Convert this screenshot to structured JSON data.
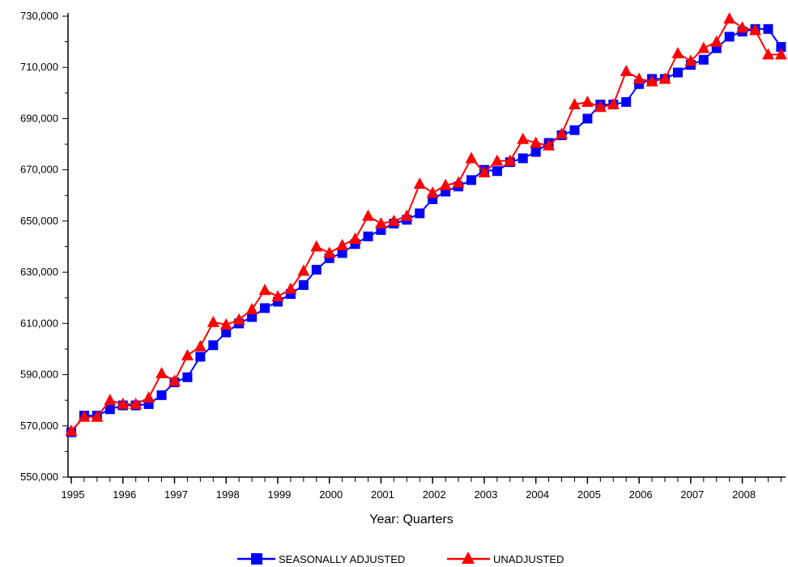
{
  "chart_data": {
    "type": "line",
    "title": "",
    "xlabel": "Year: Quarters",
    "ylabel": "",
    "ylim": [
      550000,
      730000
    ],
    "yticks": [
      "550,000",
      "570,000",
      "590,000",
      "610,000",
      "630,000",
      "650,000",
      "670,000",
      "690,000",
      "710,000",
      "730,000"
    ],
    "xticks": [
      "1995",
      "1996",
      "1997",
      "1998",
      "1999",
      "2000",
      "2001",
      "2002",
      "2003",
      "2004",
      "2005",
      "2006",
      "2007",
      "2008"
    ],
    "legend_position": "bottom",
    "grid": false,
    "series": [
      {
        "name": "SEASONALLY ADJUSTED",
        "color": "#0000FF",
        "marker": "square",
        "values": [
          567500,
          574000,
          574000,
          576500,
          578000,
          578000,
          578500,
          582000,
          587000,
          589000,
          597000,
          601500,
          606500,
          610000,
          612500,
          616000,
          618500,
          621500,
          625000,
          631000,
          635500,
          637500,
          641000,
          644000,
          646500,
          649000,
          650500,
          653000,
          658500,
          661500,
          663500,
          666000,
          670000,
          669500,
          673000,
          674500,
          677000,
          680500,
          683500,
          685500,
          690000,
          695500,
          695500,
          696500,
          703500,
          705500,
          705500,
          708000,
          711000,
          713000,
          717500,
          722000,
          724000,
          725000,
          725000,
          718000
        ]
      },
      {
        "name": "UNADJUSTED",
        "color": "#FF0000",
        "marker": "triangle",
        "values": [
          568000,
          573500,
          573500,
          580000,
          578500,
          578500,
          581000,
          590500,
          587500,
          597500,
          601000,
          610500,
          609500,
          611500,
          615500,
          623000,
          620500,
          623500,
          630500,
          640000,
          637500,
          640500,
          643000,
          652000,
          649000,
          650000,
          652000,
          664500,
          661000,
          664000,
          665000,
          674500,
          669000,
          673500,
          673500,
          682000,
          680500,
          679500,
          684000,
          695500,
          696500,
          694500,
          695500,
          708500,
          705500,
          704500,
          705500,
          715500,
          712500,
          717500,
          720000,
          729000,
          725500,
          724500,
          715000,
          715000
        ]
      }
    ]
  }
}
